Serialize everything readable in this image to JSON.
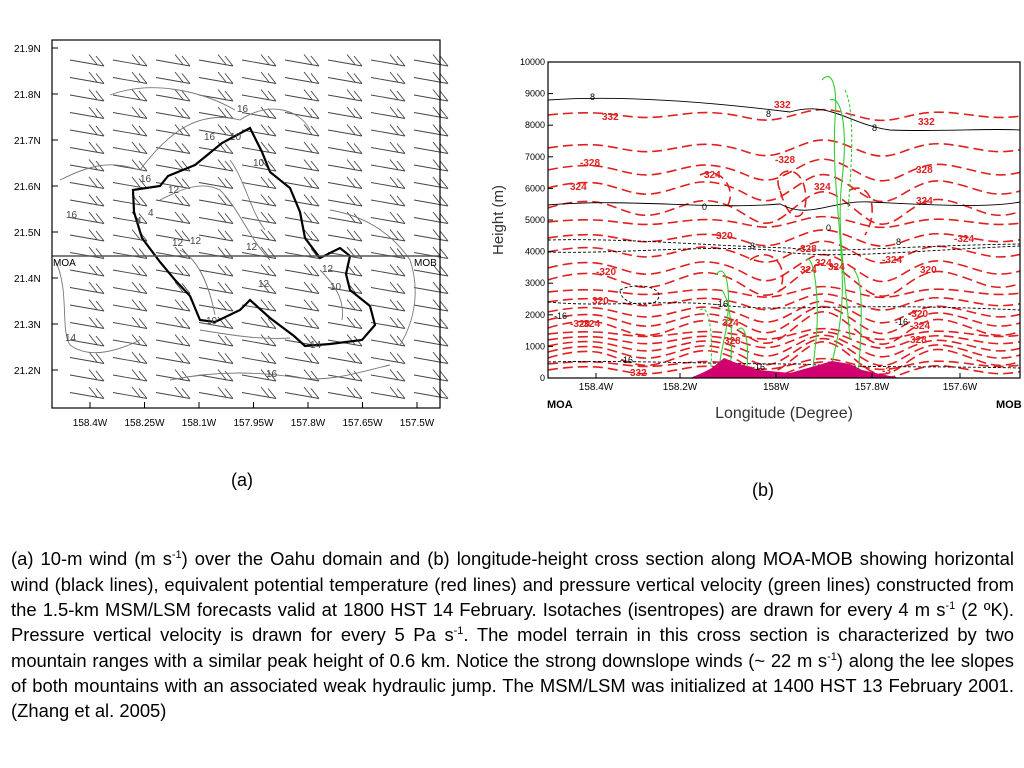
{
  "panel_a": {
    "lat_ticks": [
      "21.9N",
      "21.8N",
      "21.7N",
      "21.6N",
      "21.5N",
      "21.4N",
      "21.3N",
      "21.2N"
    ],
    "lon_ticks": [
      "158.4W",
      "158.25W",
      "158.1W",
      "157.95W",
      "157.8W",
      "157.65W",
      "157.5W"
    ],
    "line_label_left": "MOA",
    "line_label_right": "MOB",
    "contour_labels": [
      "16",
      "16",
      "16",
      "16",
      "12",
      "12",
      "12",
      "10",
      "10",
      "10",
      "12",
      "14",
      "14",
      "12",
      "16",
      "4",
      "4",
      "10",
      "12"
    ]
  },
  "panel_b": {
    "y_title": "Height (m)",
    "x_title": "Longitude (Degree)",
    "y_ticks": [
      "10000",
      "9000",
      "8000",
      "7000",
      "6000",
      "5000",
      "4000",
      "3000",
      "2000",
      "1000",
      "0"
    ],
    "x_ticks": [
      "158.4W",
      "158.2W",
      "158W",
      "157.8W",
      "157.6W"
    ],
    "endpoint_left": "MOA",
    "endpoint_right": "MOB",
    "black_labels": [
      "8",
      "8",
      "8",
      "0",
      "0",
      "8",
      "8",
      "-16",
      "-16",
      "-16",
      "-16",
      "-16"
    ],
    "red_labels": [
      "332",
      "332",
      "332",
      "-328",
      "-328",
      "328",
      "324",
      "324",
      "324",
      "324",
      "-324",
      "-324",
      "320",
      "320",
      "-320",
      "-324",
      "320",
      "324",
      "328",
      "328",
      "-320",
      "-324",
      "324",
      "324",
      "328",
      "332",
      "-3",
      "-320",
      "324"
    ]
  },
  "sublabels": {
    "a": "(a)",
    "b": "(b)"
  },
  "caption": {
    "part1": "(a) 10-m wind (m s",
    "sup1": "-1",
    "part2": ") over the Oahu domain and (b) longitude-height cross section along MOA-MOB showing horizontal wind (black lines), equivalent potential temperature (red lines) and pressure vertical velocity (green lines) constructed from the 1.5-km MSM/LSM forecasts valid at 1800 HST 14 February. Isotaches (isentropes) are drawn for every 4 m s",
    "sup2": "-1",
    "part3": " (2 ºK). Pressure vertical velocity is drawn for every 5 Pa s",
    "sup3": "-1",
    "part4": ". The model terrain in this cross section is characterized by two mountain ranges with a similar peak height of 0.6 km. Notice the strong downslope winds (~ 22 m s",
    "sup4": "-1",
    "part5": ") along the lee slopes of both mountains with an associated weak hydraulic jump. The MSM/LSM was initialized at 1400 HST 13 February 2001. (Zhang et al. 2005)"
  },
  "colors": {
    "terrain": "#d0006f",
    "red_lines": "#e02020",
    "green_lines": "#33cc33"
  }
}
